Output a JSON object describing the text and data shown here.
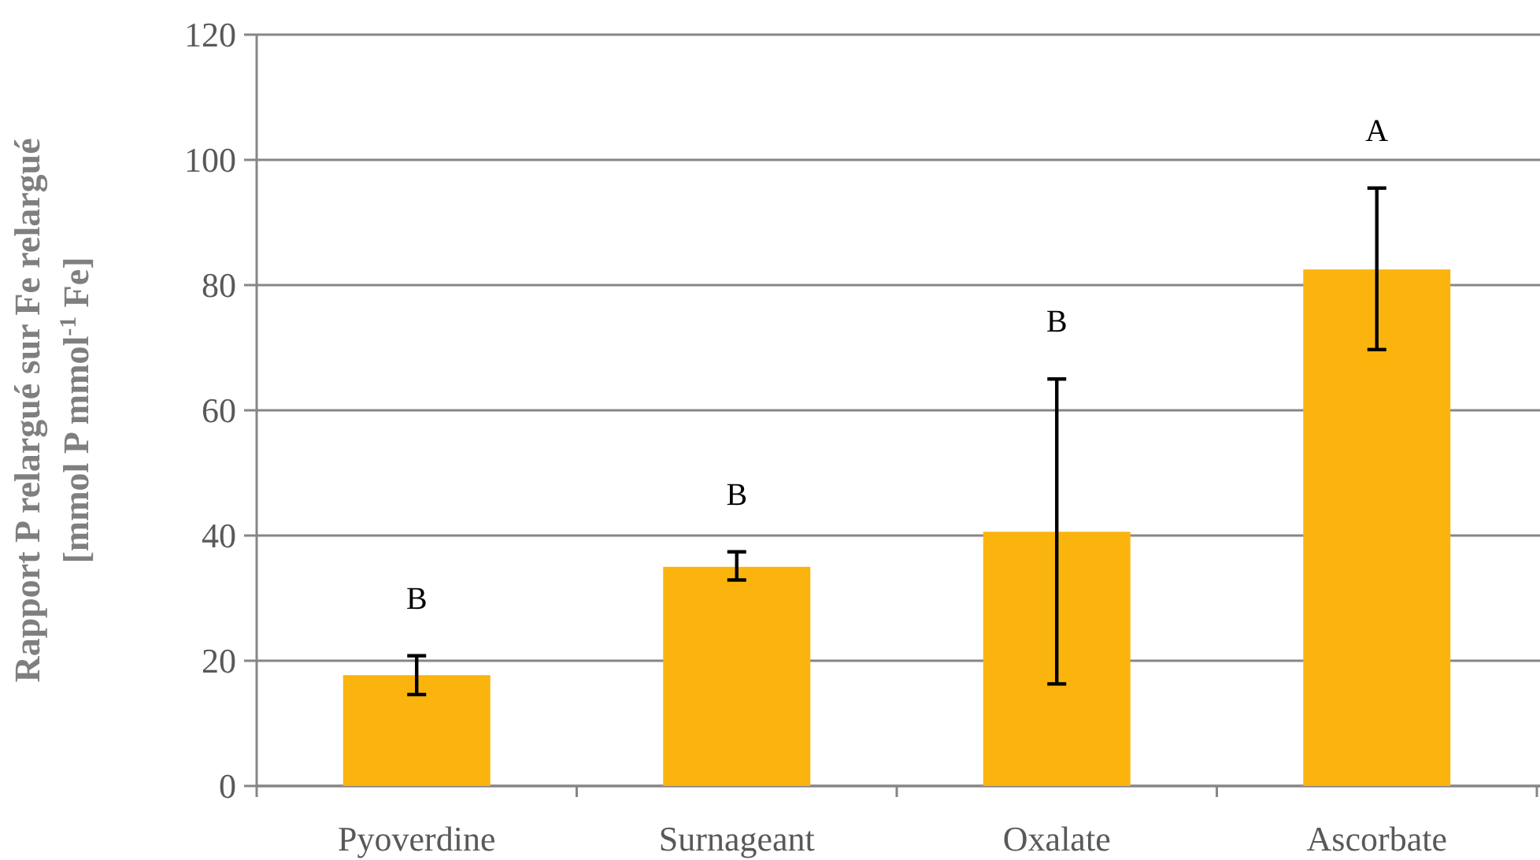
{
  "chart_data": {
    "type": "bar",
    "ylabel": "Rapport P relargué sur Fe relargué\n[mmol P mmol$^{-1}$ Fe]",
    "categories": [
      "Pyoverdine",
      "Surnageant",
      "Oxalate",
      "Ascorbate"
    ],
    "values": [
      17.7,
      35.0,
      40.6,
      82.5
    ],
    "color": "#fbb40e",
    "errors": [
      [
        14.6,
        20.8
      ],
      [
        32.9,
        37.4
      ],
      [
        16.3,
        65.0
      ],
      [
        69.7,
        95.5
      ]
    ],
    "ylim": [
      0,
      120
    ],
    "yticks": [
      0,
      20,
      40,
      60,
      80,
      100,
      120
    ],
    "grid": "y",
    "annotations": [
      "B",
      "B",
      "B",
      "A"
    ]
  }
}
